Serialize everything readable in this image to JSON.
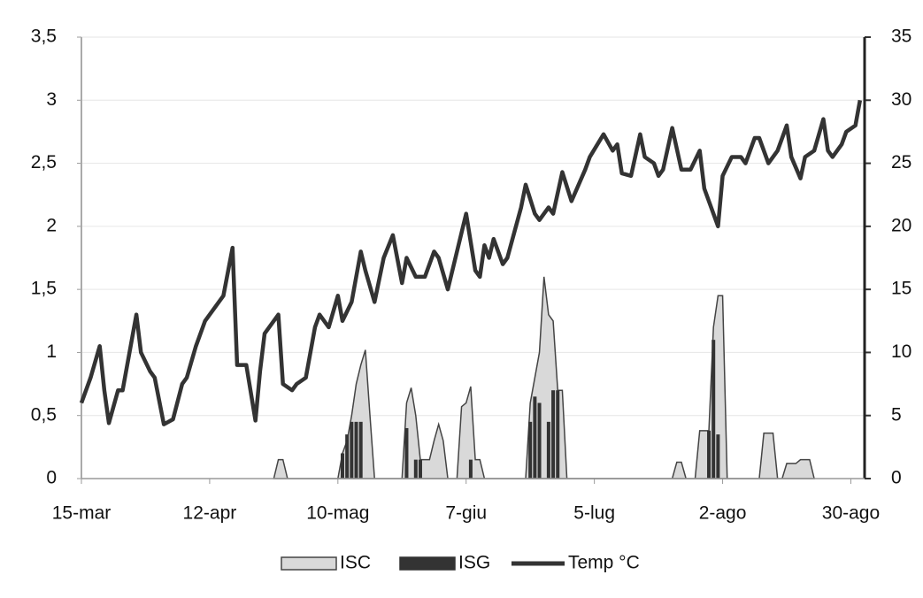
{
  "chart_data": {
    "type": "combo",
    "xlim": [
      0,
      171
    ],
    "xticks": [
      {
        "value": 0,
        "label": "15-mar"
      },
      {
        "value": 28,
        "label": "12-apr"
      },
      {
        "value": 56,
        "label": "10-mag"
      },
      {
        "value": 84,
        "label": "7-giu"
      },
      {
        "value": 112,
        "label": "5-lug"
      },
      {
        "value": 140,
        "label": "2-ago"
      },
      {
        "value": 168,
        "label": "30-ago"
      }
    ],
    "ylim": [
      0,
      3.5
    ],
    "yticks": [
      0,
      {
        "value": 0.5,
        "label": "0,5"
      },
      1,
      {
        "value": 1.5,
        "label": "1,5"
      },
      2,
      {
        "value": 2.5,
        "label": "2,5"
      },
      3,
      {
        "value": 3.5,
        "label": "3,5"
      }
    ],
    "y2lim": [
      0,
      35
    ],
    "y2ticks": [
      0,
      5,
      10,
      15,
      20,
      25,
      30,
      35
    ],
    "grid": true,
    "legend": "bottom",
    "series": [
      {
        "name": "ISC",
        "kind": "area",
        "color": "#d9d9d9",
        "x": [
          42,
          43,
          44,
          45,
          56,
          57,
          58,
          59,
          60,
          61,
          62,
          63,
          64,
          70,
          71,
          72,
          73,
          74,
          75,
          76,
          77,
          78,
          79,
          80,
          82,
          83,
          84,
          85,
          86,
          87,
          88,
          97,
          98,
          100,
          101,
          102,
          103,
          104,
          105,
          106,
          129,
          130,
          131,
          132,
          134,
          135,
          137,
          138,
          139,
          140,
          141,
          148,
          149,
          151,
          152,
          153,
          154,
          156,
          157,
          159,
          160
        ],
        "values": [
          0,
          0.15,
          0.15,
          0,
          0,
          0.2,
          0.3,
          0.5,
          0.75,
          0.9,
          1.02,
          0.5,
          0,
          0,
          0.6,
          0.72,
          0.5,
          0.15,
          0.15,
          0.15,
          0.3,
          0.43,
          0.3,
          0,
          0,
          0.57,
          0.6,
          0.73,
          0.15,
          0.15,
          0,
          0,
          0.6,
          1.0,
          1.6,
          1.3,
          1.25,
          0.7,
          0.7,
          0,
          0,
          0.13,
          0.13,
          0,
          0,
          0.38,
          0.38,
          1.2,
          1.45,
          1.45,
          0,
          0,
          0.36,
          0.36,
          0,
          0,
          0.12,
          0.12,
          0.15,
          0.15,
          0
        ]
      },
      {
        "name": "ISG",
        "kind": "bar",
        "color": "#333333",
        "x": [
          57,
          58,
          59,
          60,
          61,
          71,
          73,
          74,
          85,
          98,
          99,
          100,
          102,
          103,
          104,
          137,
          138,
          139
        ],
        "values": [
          0.2,
          0.35,
          0.45,
          0.45,
          0.45,
          0.4,
          0.15,
          0.15,
          0.15,
          0.45,
          0.65,
          0.6,
          0.45,
          0.7,
          0.7,
          0.38,
          1.1,
          0.35
        ]
      },
      {
        "name": "Temp °C",
        "kind": "line",
        "axis": "y2",
        "color": "#333333",
        "x": [
          0,
          2,
          4,
          5,
          6,
          8,
          9,
          12,
          13,
          15,
          16,
          18,
          20,
          22,
          23,
          25,
          27,
          28,
          31,
          33,
          34,
          36,
          38,
          39,
          40,
          42,
          43,
          44,
          46,
          47,
          49,
          51,
          52,
          54,
          56,
          57,
          59,
          61,
          62,
          64,
          66,
          68,
          70,
          71,
          73,
          75,
          77,
          78,
          80,
          82,
          84,
          86,
          87,
          88,
          89,
          90,
          92,
          93,
          96,
          97,
          99,
          100,
          102,
          103,
          105,
          107,
          110,
          111,
          114,
          116,
          117,
          118,
          120,
          122,
          123,
          125,
          126,
          127,
          129,
          131,
          133,
          135,
          136,
          137,
          139,
          140,
          142,
          144,
          145,
          147,
          148,
          150,
          152,
          154,
          155,
          157,
          158,
          160,
          162,
          163,
          164,
          166,
          167,
          169,
          170
        ],
        "values": [
          6,
          8,
          10.5,
          7,
          4.4,
          7,
          7,
          13,
          10,
          8.5,
          8,
          4.3,
          4.7,
          7.5,
          8,
          10.5,
          12.5,
          13,
          14.5,
          18.3,
          9,
          9,
          4.6,
          8.5,
          11.5,
          12.5,
          13,
          7.5,
          7,
          7.5,
          8,
          12,
          13,
          12,
          14.5,
          12.5,
          14,
          18,
          16.5,
          14,
          17.5,
          19.3,
          15.5,
          17.5,
          16,
          16,
          18,
          17.5,
          15,
          18,
          21,
          16.5,
          16,
          18.5,
          17.5,
          19,
          17,
          17.5,
          21.5,
          23.3,
          21,
          20.5,
          21.5,
          21,
          24.3,
          22,
          24.5,
          25.5,
          27.3,
          26,
          26.5,
          24.2,
          24,
          27.3,
          25.5,
          25,
          24,
          24.5,
          27.8,
          24.5,
          24.5,
          26,
          23,
          22,
          20,
          24,
          25.5,
          25.5,
          25,
          27,
          27,
          25,
          26,
          28,
          25.5,
          23.8,
          25.5,
          26,
          28.5,
          26,
          25.5,
          26.5,
          27.5,
          28,
          30
        ]
      }
    ]
  }
}
